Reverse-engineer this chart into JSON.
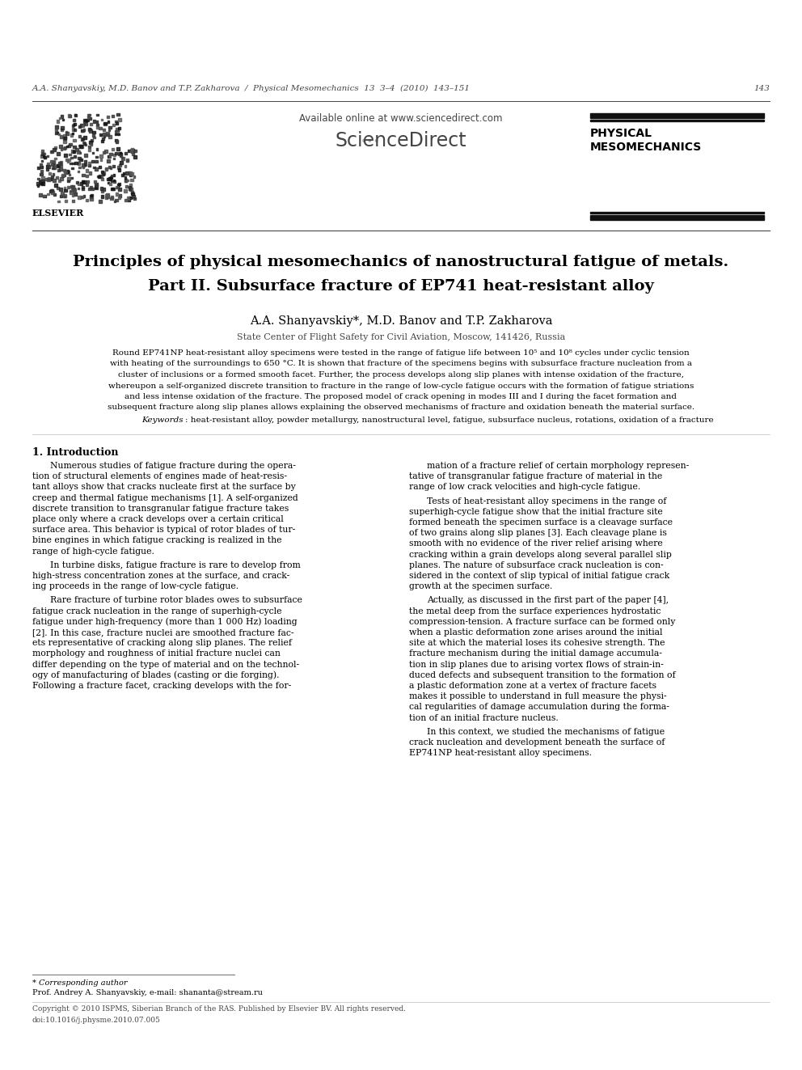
{
  "bg_color": "#ffffff",
  "header_italic": "A.A. Shanyavskiy, M.D. Banov and T.P. Zakharova  /  Physical Mesomechanics  13  3–4  (2010)  143–151",
  "header_page": "143",
  "title_line1": "Principles of physical mesomechanics of nanostructural fatigue of metals.",
  "title_line2": "Part II. Subsurface fracture of EP741 heat-resistant alloy",
  "authors": "A.A. Shanyavskiy*, M.D. Banov and T.P. Zakharova",
  "affiliation": "State Center of Flight Safety for Civil Aviation, Moscow, 141426, Russia",
  "abstract_lines": [
    "Round EP741NP heat-resistant alloy specimens were tested in the range of fatigue life between 10⁵ and 10⁸ cycles under cyclic tension",
    "with heating of the surroundings to 650 °C. It is shown that fracture of the specimens begins with subsurface fracture nucleation from a",
    "cluster of inclusions or a formed smooth facet. Further, the process develops along slip planes with intense oxidation of the fracture,",
    "whereupon a self-organized discrete transition to fracture in the range of low-cycle fatigue occurs with the formation of fatigue striations",
    "and less intense oxidation of the fracture. The proposed model of crack opening in modes III and I during the facet formation and",
    "subsequent fracture along slip planes allows explaining the observed mechanisms of fracture and oxidation beneath the material surface."
  ],
  "keywords_italic": "Keywords",
  "keywords_rest": ": heat-resistant alloy, powder metallurgy, nanostructural level, fatigue, subsurface nucleus, rotations, oxidation of a fracture",
  "section1_title": "1. Introduction",
  "col1_paras": [
    [
      "Numerous studies of fatigue fracture during the opera-",
      "tion of structural elements of engines made of heat-resis-",
      "tant alloys show that cracks nucleate first at the surface by",
      "creep and thermal fatigue mechanisms [1]. A self-organized",
      "discrete transition to transgranular fatigue fracture takes",
      "place only where a crack develops over a certain critical",
      "surface area. This behavior is typical of rotor blades of tur-",
      "bine engines in which fatigue cracking is realized in the",
      "range of high-cycle fatigue."
    ],
    [
      "In turbine disks, fatigue fracture is rare to develop from",
      "high-stress concentration zones at the surface, and crack-",
      "ing proceeds in the range of low-cycle fatigue."
    ],
    [
      "Rare fracture of turbine rotor blades owes to subsurface",
      "fatigue crack nucleation in the range of superhigh-cycle",
      "fatigue under high-frequency (more than 1 000 Hz) loading",
      "[2]. In this case, fracture nuclei are smoothed fracture fac-",
      "ets representative of cracking along slip planes. The relief",
      "morphology and roughness of initial fracture nuclei can",
      "differ depending on the type of material and on the technol-",
      "ogy of manufacturing of blades (casting or die forging).",
      "Following a fracture facet, cracking develops with the for-"
    ]
  ],
  "col2_paras": [
    [
      "mation of a fracture relief of certain morphology represen-",
      "tative of transgranular fatigue fracture of material in the",
      "range of low crack velocities and high-cycle fatigue."
    ],
    [
      "Tests of heat-resistant alloy specimens in the range of",
      "superhigh-cycle fatigue show that the initial fracture site",
      "formed beneath the specimen surface is a cleavage surface",
      "of two grains along slip planes [3]. Each cleavage plane is",
      "smooth with no evidence of the river relief arising where",
      "cracking within a grain develops along several parallel slip",
      "planes. The nature of subsurface crack nucleation is con-",
      "sidered in the context of slip typical of initial fatigue crack",
      "growth at the specimen surface."
    ],
    [
      "Actually, as discussed in the first part of the paper [4],",
      "the metal deep from the surface experiences hydrostatic",
      "compression-tension. A fracture surface can be formed only",
      "when a plastic deformation zone arises around the initial",
      "site at which the material loses its cohesive strength. The",
      "fracture mechanism during the initial damage accumula-",
      "tion in slip planes due to arising vortex flows of strain-in-",
      "duced defects and subsequent transition to the formation of",
      "a plastic deformation zone at a vertex of fracture facets",
      "makes it possible to understand in full measure the physi-",
      "cal regularities of damage accumulation during the forma-",
      "tion of an initial fracture nucleus."
    ],
    [
      "In this context, we studied the mechanisms of fatigue",
      "crack nucleation and development beneath the surface of",
      "EP741NP heat-resistant alloy specimens."
    ]
  ],
  "footnote_star": "* Corresponding author",
  "footnote_author": "Prof. Andrey A. Shanyavskiy, e-mail: shananta@stream.ru",
  "copyright": "Copyright © 2010 ISPMS, Siberian Branch of the RAS. Published by Elsevier BV. All rights reserved.",
  "doi": "doi:10.1016/j.physme.2010.07.005",
  "elsevier_label": "ELSEVIER",
  "sd_url": "Available online at www.sciencedirect.com",
  "journal_line1": "PHYSICAL",
  "journal_line2": "MESOMECHANICS"
}
